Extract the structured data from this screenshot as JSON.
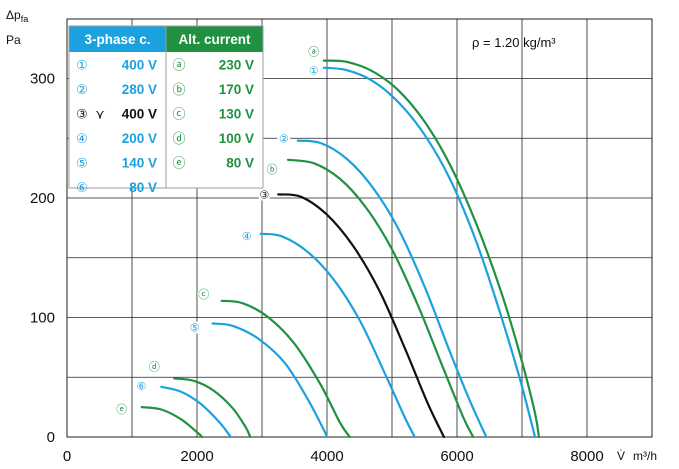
{
  "chart_data": {
    "type": "line",
    "y_axis_label": "Δp",
    "y_axis_label_sub": "fa",
    "y_axis_unit": "Pa",
    "x_axis_unit_symbol": "V̇",
    "x_axis_unit": "m³/h",
    "xlim": [
      0,
      8000
    ],
    "ylim": [
      0,
      330
    ],
    "x_ticks": [
      0,
      2000,
      4000,
      6000,
      8000
    ],
    "y_ticks": [
      0,
      100,
      200,
      300
    ],
    "x_tick_labels": [
      "0",
      "2000",
      "4000",
      "6000",
      "8000"
    ],
    "y_tick_labels": [
      "0",
      "100",
      "200",
      "300"
    ],
    "grid": true,
    "annotation": "ρ = 1.20 kg/m³",
    "legend": {
      "three_phase": {
        "title": "3-phase c.",
        "entries": [
          {
            "symbol": "①",
            "value": "400 V"
          },
          {
            "symbol": "②",
            "value": "280 V"
          },
          {
            "symbol": "③",
            "extra": "⋎",
            "value": "400 V"
          },
          {
            "symbol": "④",
            "value": "200 V"
          },
          {
            "symbol": "⑤",
            "value": "140 V"
          },
          {
            "symbol": "⑥",
            "value": "80 V"
          }
        ]
      },
      "alt_current": {
        "title": "Alt. current",
        "entries": [
          {
            "symbol": "ⓐ",
            "value": "230 V"
          },
          {
            "symbol": "ⓑ",
            "value": "170 V"
          },
          {
            "symbol": "ⓒ",
            "value": "130 V"
          },
          {
            "symbol": "ⓓ",
            "value": "100 V"
          },
          {
            "symbol": "ⓔ",
            "value": "80 V"
          }
        ]
      }
    },
    "series": [
      {
        "id": "a",
        "label": "ⓐ",
        "color": "#1f9141",
        "x": [
          3950,
          4300,
          4700,
          5100,
          5500,
          5900,
          6300,
          6700,
          7000,
          7200,
          7260
        ],
        "y": [
          315,
          314,
          306,
          290,
          264,
          227,
          178,
          118,
          63,
          20,
          0
        ]
      },
      {
        "id": "1",
        "label": "①",
        "color": "#1ba1dd",
        "x": [
          3950,
          4300,
          4700,
          5100,
          5500,
          5900,
          6300,
          6650,
          6950,
          7130,
          7200
        ],
        "y": [
          309,
          307,
          298,
          280,
          253,
          215,
          163,
          106,
          52,
          15,
          0
        ]
      },
      {
        "id": "2",
        "label": "②",
        "color": "#1ba1dd",
        "x": [
          3550,
          3900,
          4300,
          4700,
          5100,
          5500,
          5900,
          6200,
          6450
        ],
        "y": [
          248,
          246,
          233,
          209,
          174,
          126,
          70,
          30,
          0
        ]
      },
      {
        "id": "b",
        "label": "ⓑ",
        "color": "#1f9141",
        "x": [
          3400,
          3800,
          4200,
          4600,
          5000,
          5400,
          5800,
          6100,
          6250
        ],
        "y": [
          232,
          229,
          216,
          192,
          157,
          110,
          56,
          16,
          0
        ]
      },
      {
        "id": "3",
        "label": "③",
        "color": "#111111",
        "x": [
          3250,
          3600,
          4000,
          4400,
          4800,
          5200,
          5550,
          5800
        ],
        "y": [
          203,
          201,
          186,
          160,
          123,
          74,
          28,
          0
        ]
      },
      {
        "id": "4",
        "label": "④",
        "color": "#1ba1dd",
        "x": [
          2980,
          3300,
          3700,
          4100,
          4500,
          4900,
          5200,
          5350
        ],
        "y": [
          170,
          168,
          155,
          132,
          98,
          52,
          16,
          0
        ]
      },
      {
        "id": "c",
        "label": "ⓒ",
        "color": "#1f9141",
        "x": [
          2380,
          2700,
          3100,
          3500,
          3900,
          4200,
          4350
        ],
        "y": [
          114,
          112,
          100,
          78,
          44,
          12,
          0
        ]
      },
      {
        "id": "5",
        "label": "⑤",
        "color": "#1ba1dd",
        "x": [
          2240,
          2550,
          2950,
          3350,
          3700,
          3950,
          4000
        ],
        "y": [
          95,
          93,
          82,
          62,
          32,
          6,
          0
        ]
      },
      {
        "id": "d",
        "label": "ⓓ",
        "color": "#1f9141",
        "x": [
          1650,
          1950,
          2250,
          2550,
          2750,
          2820
        ],
        "y": [
          49,
          47,
          39,
          24,
          8,
          0
        ]
      },
      {
        "id": "6",
        "label": "⑥",
        "color": "#1ba1dd",
        "x": [
          1450,
          1750,
          2050,
          2350,
          2520
        ],
        "y": [
          42,
          38,
          28,
          12,
          0
        ]
      },
      {
        "id": "e",
        "label": "ⓔ",
        "color": "#1f9141",
        "x": [
          1150,
          1450,
          1750,
          2000,
          2080
        ],
        "y": [
          25,
          23,
          15,
          4,
          0
        ]
      }
    ]
  }
}
